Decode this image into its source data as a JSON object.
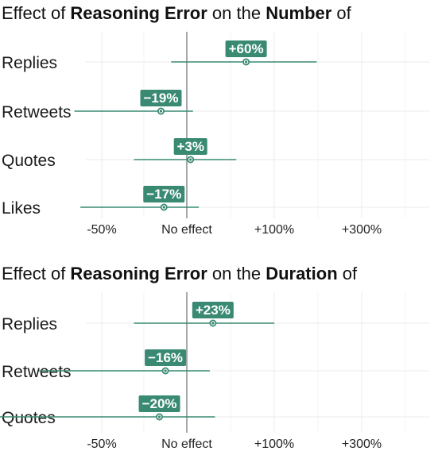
{
  "colors": {
    "accent": "#3a8a73",
    "gridline": "#ebebeb",
    "zero_line": "#8c8c8c",
    "badge_text": "#ffffff"
  },
  "chart_data": [
    {
      "type": "forest",
      "title_parts": [
        {
          "text": "Effect of ",
          "bold": false
        },
        {
          "text": "Reasoning Error",
          "bold": true
        },
        {
          "text": " on the ",
          "bold": false
        },
        {
          "text": "Number",
          "bold": true
        },
        {
          "text": " of",
          "bold": false
        }
      ],
      "categories": [
        "Replies",
        "Retweets",
        "Quotes",
        "Likes"
      ],
      "estimates": [
        60,
        -19,
        3,
        -17
      ],
      "ci_lower": [
        -12,
        -60,
        -35,
        -58
      ],
      "ci_upper": [
        180,
        5,
        48,
        10
      ],
      "labels": [
        "+60%",
        "−19%",
        "+3%",
        "−17%"
      ],
      "x_ticks": [
        -50,
        0,
        100,
        300
      ],
      "x_tick_labels": [
        "-50%",
        "No effect",
        "+100%",
        "+300%"
      ],
      "xlim": [
        -75,
        600
      ]
    },
    {
      "type": "forest",
      "title_parts": [
        {
          "text": "Effect of ",
          "bold": false
        },
        {
          "text": "Reasoning Error",
          "bold": true
        },
        {
          "text": " on the ",
          "bold": false
        },
        {
          "text": "Duration",
          "bold": true
        },
        {
          "text": " of",
          "bold": false
        }
      ],
      "categories": [
        "Replies",
        "Retweets",
        "Quotes"
      ],
      "estimates": [
        23,
        -16,
        -20
      ],
      "ci_lower": [
        -35,
        -70,
        -80
      ],
      "ci_upper": [
        100,
        20,
        25
      ],
      "labels": [
        "+23%",
        "−16%",
        "−20%"
      ],
      "x_ticks": [
        -50,
        0,
        100,
        300
      ],
      "x_tick_labels": [
        "-50%",
        "No effect",
        "+100%",
        "+300%"
      ],
      "xlim": [
        -75,
        600
      ]
    }
  ]
}
